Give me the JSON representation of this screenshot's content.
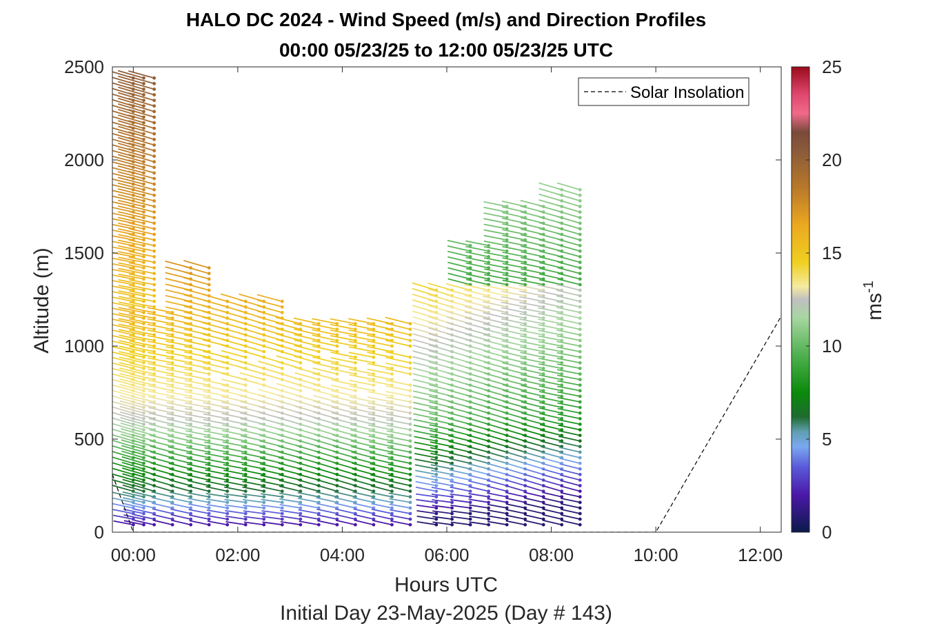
{
  "chart_data": {
    "type": "wind-barb-profile",
    "title": "HALO DC 2024 - Wind Speed (m/s) and Direction Profiles",
    "subtitle": "00:00 05/23/25 to 12:00 05/23/25  UTC",
    "xlabel": "Hours UTC",
    "xlabel2": "Initial Day 23-May-2025 (Day # 143)",
    "ylabel": "Altitude (m)",
    "xlim": [
      -0.4,
      12.4
    ],
    "ylim": [
      0,
      2500
    ],
    "x_ticks": [
      {
        "value": 0,
        "label": "00:00"
      },
      {
        "value": 2,
        "label": "02:00"
      },
      {
        "value": 4,
        "label": "04:00"
      },
      {
        "value": 6,
        "label": "06:00"
      },
      {
        "value": 8,
        "label": "08:00"
      },
      {
        "value": 10,
        "label": "10:00"
      },
      {
        "value": 12,
        "label": "12:00"
      }
    ],
    "y_ticks": [
      {
        "value": 0,
        "label": "0"
      },
      {
        "value": 500,
        "label": "500"
      },
      {
        "value": 1000,
        "label": "1000"
      },
      {
        "value": 1500,
        "label": "1500"
      },
      {
        "value": 2000,
        "label": "2000"
      },
      {
        "value": 2500,
        "label": "2500"
      }
    ],
    "colorbar": {
      "label": "ms",
      "label_exponent": "-1",
      "range": [
        0,
        25
      ],
      "ticks": [
        {
          "value": 0,
          "label": "0"
        },
        {
          "value": 5,
          "label": "5"
        },
        {
          "value": 10,
          "label": "10"
        },
        {
          "value": 15,
          "label": "15"
        },
        {
          "value": 20,
          "label": "20"
        },
        {
          "value": 25,
          "label": "25"
        }
      ],
      "stops": [
        {
          "v": 0,
          "c": "#0b1a4a"
        },
        {
          "v": 2,
          "c": "#4b18a8"
        },
        {
          "v": 3.5,
          "c": "#5a5ad8"
        },
        {
          "v": 4.6,
          "c": "#7aa8f0"
        },
        {
          "v": 5.4,
          "c": "#5f9fb0"
        },
        {
          "v": 6.2,
          "c": "#1e6b2e"
        },
        {
          "v": 7.5,
          "c": "#0a8a0a"
        },
        {
          "v": 9.5,
          "c": "#4fb04f"
        },
        {
          "v": 11.5,
          "c": "#a6d6a0"
        },
        {
          "v": 12.5,
          "c": "#c0c0c0"
        },
        {
          "v": 13.2,
          "c": "#f5eaa0"
        },
        {
          "v": 14.5,
          "c": "#f0d020"
        },
        {
          "v": 16.5,
          "c": "#eba820"
        },
        {
          "v": 18.5,
          "c": "#b8782a"
        },
        {
          "v": 20.5,
          "c": "#8a5a3a"
        },
        {
          "v": 21.5,
          "c": "#7a4a3a"
        },
        {
          "v": 22.5,
          "c": "#f06a8a"
        },
        {
          "v": 23.5,
          "c": "#e04870"
        },
        {
          "v": 25,
          "c": "#9a0a1a"
        }
      ]
    },
    "legend": {
      "position": "top-right",
      "entries": [
        {
          "label": "Solar Insolation",
          "style": "dashed",
          "color": "#000000"
        }
      ]
    },
    "solar_insolation_line": {
      "x": [
        -0.4,
        0.0,
        5.5,
        10.0,
        12.4
      ],
      "y": [
        310,
        0,
        0,
        0,
        1160
      ]
    },
    "profile_times": [
      0,
      0.2,
      0.4,
      0.75,
      1.1,
      1.45,
      1.8,
      2.15,
      2.5,
      2.85,
      3.2,
      3.55,
      3.9,
      4.25,
      4.6,
      4.95,
      5.3,
      5.8,
      6.1,
      6.45,
      6.8,
      7.15,
      7.5,
      7.85,
      8.2,
      8.55
    ],
    "grid": false
  }
}
